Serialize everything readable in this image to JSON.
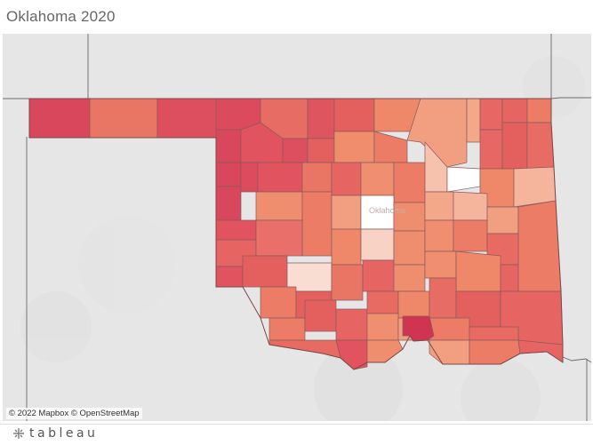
{
  "title": "Oklahoma 2020",
  "map": {
    "state": "Oklahoma",
    "city_label": "Oklahoma",
    "attribution": {
      "mapbox": "© 2022 Mapbox",
      "osm": "© OpenStreetMap"
    },
    "colors": {
      "background": "#e8e8e8",
      "darkest": "#d13d55",
      "lightest": "#ffffff"
    }
  },
  "footer": {
    "logo_text": "tableau",
    "logo_icon": "tableau-logo-icon"
  }
}
